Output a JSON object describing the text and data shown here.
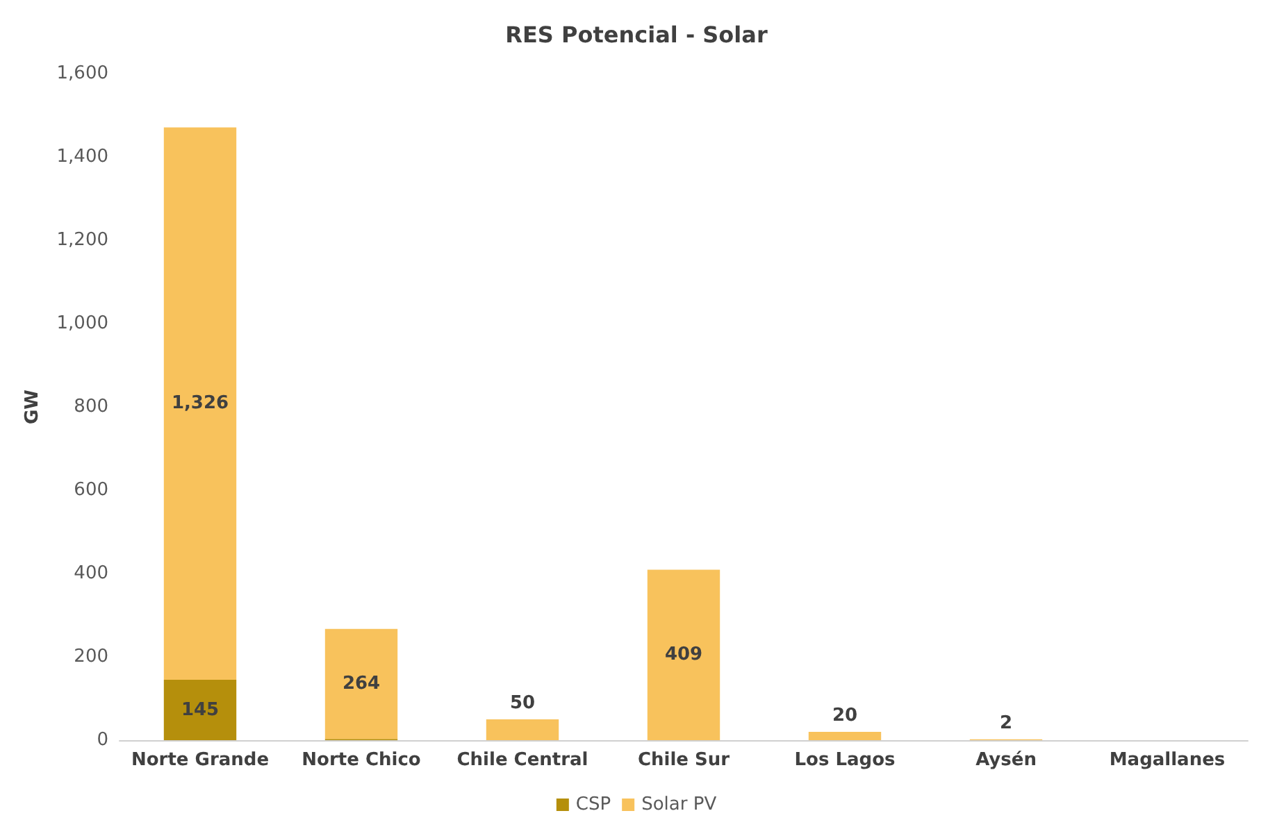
{
  "chart_data": {
    "type": "bar",
    "title": "RES Potencial - Solar",
    "ylabel": "GW",
    "stacked": true,
    "categories": [
      "Norte Grande",
      "Norte Chico",
      "Chile Central",
      "Chile Sur",
      "Los Lagos",
      "Aysén",
      "Magallanes"
    ],
    "series": [
      {
        "name": "CSP",
        "color": "#b58f0c",
        "values": [
          145,
          3,
          0,
          0,
          0,
          0,
          0
        ],
        "value_labels": [
          "145",
          null,
          null,
          null,
          null,
          null,
          null
        ]
      },
      {
        "name": "Solar PV",
        "color": "#f8c25c",
        "values": [
          1326,
          264,
          50,
          409,
          20,
          2,
          0
        ],
        "value_labels": [
          "1,326",
          "264",
          "50",
          "409",
          "20",
          "2",
          null
        ]
      }
    ],
    "ylim": [
      0,
      1600
    ],
    "yticks": [
      {
        "value": 0,
        "label": "0"
      },
      {
        "value": 200,
        "label": "200"
      },
      {
        "value": 400,
        "label": "400"
      },
      {
        "value": 600,
        "label": "600"
      },
      {
        "value": 800,
        "label": "800"
      },
      {
        "value": 1000,
        "label": "1,000"
      },
      {
        "value": 1200,
        "label": "1,200"
      },
      {
        "value": 1400,
        "label": "1,400"
      },
      {
        "value": 1600,
        "label": "1,600"
      }
    ],
    "grid": false,
    "legend": "bottom"
  }
}
